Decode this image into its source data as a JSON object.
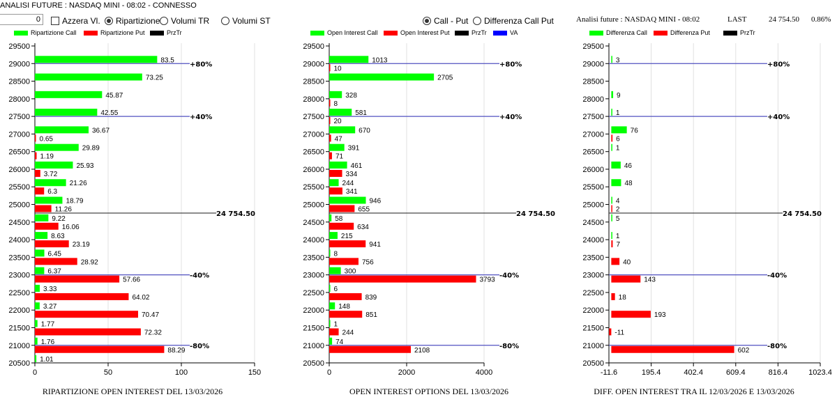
{
  "header": {
    "title": "ANALISI FUTURE : NASDAQ MINI - 08:02 - CONNESSO",
    "input_value": "0",
    "azzera_label": "Azzera Vl.",
    "radios": [
      {
        "label": "Ripartizione",
        "checked": true
      },
      {
        "label": "Volumi TR",
        "checked": false
      },
      {
        "label": "Volumi ST",
        "checked": false
      }
    ],
    "mode_radios": [
      {
        "label": "Call - Put",
        "checked": true
      },
      {
        "label": "Differenza Call Put",
        "checked": false
      }
    ],
    "info": {
      "text": "Analisi future : NASDAQ MINI - 08:02",
      "last_label": "LAST",
      "last_value": "24 754.50",
      "change": "0.86%"
    }
  },
  "colors": {
    "call": "#00ff00",
    "put": "#ff0000",
    "przTr": "#000000",
    "va": "#0000ff",
    "level_line": "#5050c0"
  },
  "chart_data": [
    {
      "type": "bar",
      "title": "RIPARTIZIONE OPEN INTEREST DEL 13/03/2026",
      "legend": [
        "Ripartizione Call",
        "Ripartizione Put",
        "PrzTr"
      ],
      "x_ticks": [
        "0",
        "50",
        "100",
        "150"
      ],
      "xlim": [
        0,
        150
      ],
      "y_ticks": [
        "29500",
        "29000",
        "28500",
        "28000",
        "27500",
        "27000",
        "26500",
        "26000",
        "25500",
        "25000",
        "24500",
        "24000",
        "23500",
        "23000",
        "22500",
        "22000",
        "21500",
        "21000",
        "20500"
      ],
      "strikes": [
        29000,
        28500,
        28000,
        27500,
        27000,
        26500,
        26000,
        25500,
        25000,
        24500,
        24000,
        23500,
        23000,
        22500,
        22000,
        21500,
        21000,
        20500
      ],
      "series": [
        {
          "name": "Ripartizione Call",
          "values": [
            83.5,
            73.25,
            45.87,
            42.55,
            36.67,
            29.89,
            25.93,
            21.26,
            18.79,
            9.22,
            8.63,
            6.45,
            6.37,
            3.33,
            3.27,
            1.77,
            1.76,
            1.01
          ]
        },
        {
          "name": "Ripartizione Put",
          "values": [
            null,
            null,
            null,
            null,
            0.65,
            1.19,
            3.72,
            6.3,
            11.26,
            16.06,
            23.19,
            28.92,
            57.66,
            64.02,
            70.47,
            72.32,
            88.29,
            null
          ]
        }
      ],
      "levels": [
        {
          "strike": 29000,
          "label": "+80%"
        },
        {
          "strike": 27500,
          "label": "+40%"
        },
        {
          "strike": 23000,
          "label": "-40%"
        },
        {
          "strike": 21000,
          "label": "-80%"
        }
      ],
      "price": {
        "value": 24754.5,
        "label": "24 754.50"
      }
    },
    {
      "type": "bar",
      "title": "OPEN INTEREST OPTIONS DEL 13/03/2026",
      "legend": [
        "Open Interest Call",
        "Open Interest Put",
        "PrzTr",
        "VA"
      ],
      "x_ticks": [
        "0",
        "2000",
        "4000"
      ],
      "xlim": [
        0,
        4000
      ],
      "y_ticks": [
        "29500",
        "29000",
        "28500",
        "28000",
        "27500",
        "27000",
        "26500",
        "26000",
        "25500",
        "25000",
        "24500",
        "24000",
        "23500",
        "23000",
        "22500",
        "22000",
        "21500",
        "21000",
        "20500"
      ],
      "strikes": [
        29000,
        28500,
        28000,
        27500,
        27000,
        26500,
        26000,
        25500,
        25000,
        24500,
        24000,
        23500,
        23000,
        22500,
        22000,
        21500,
        21000
      ],
      "series": [
        {
          "name": "Open Interest Call",
          "values": [
            1013,
            2705,
            328,
            581,
            670,
            391,
            461,
            244,
            946,
            58,
            215,
            8,
            300,
            6,
            148,
            1,
            74
          ]
        },
        {
          "name": "Open Interest Put",
          "values": [
            10,
            null,
            8,
            20,
            47,
            71,
            334,
            341,
            655,
            634,
            941,
            756,
            3793,
            839,
            851,
            244,
            2108
          ]
        }
      ],
      "levels": [
        {
          "strike": 29000,
          "label": "+80%"
        },
        {
          "strike": 27500,
          "label": "+40%"
        },
        {
          "strike": 23000,
          "label": "-40%"
        },
        {
          "strike": 21000,
          "label": "-80%"
        }
      ],
      "price": {
        "value": 24754.5,
        "label": "24 754.50"
      }
    },
    {
      "type": "bar",
      "title": "DIFF. OPEN INTEREST TRA IL 12/03/2026 E 13/03/2026",
      "legend": [
        "Differenza Call",
        "Differenza Put",
        "PrzTr"
      ],
      "x_ticks": [
        "-11.6",
        "195.4",
        "402.4",
        "609.4",
        "816.4",
        "1023.4"
      ],
      "xlim": [
        -11.6,
        1023.4
      ],
      "y_ticks": [
        "29500",
        "29000",
        "28500",
        "28000",
        "27500",
        "27000",
        "26500",
        "26000",
        "25500",
        "25000",
        "24500",
        "24000",
        "23500",
        "23000",
        "22500",
        "22000",
        "21500",
        "21000",
        "20500"
      ],
      "strikes": [
        29000,
        28500,
        28000,
        27500,
        27000,
        26500,
        26000,
        25500,
        25000,
        24500,
        24000,
        23500,
        23000,
        22500,
        22000,
        21500,
        21000
      ],
      "series": [
        {
          "name": "Differenza Call",
          "values": [
            3,
            null,
            9,
            1,
            76,
            1,
            46,
            48,
            4,
            5,
            1,
            null,
            null,
            null,
            null,
            null,
            null
          ]
        },
        {
          "name": "Differenza Put",
          "values": [
            null,
            null,
            null,
            null,
            6,
            null,
            null,
            null,
            2,
            null,
            7,
            40,
            143,
            18,
            193,
            -11,
            602
          ]
        }
      ],
      "levels": [
        {
          "strike": 29000,
          "label": "+80%"
        },
        {
          "strike": 27500,
          "label": "+40%"
        },
        {
          "strike": 23000,
          "label": "-40%"
        },
        {
          "strike": 21000,
          "label": "-80%"
        }
      ],
      "price": {
        "value": 24754.5,
        "label": "24 754.50"
      }
    }
  ]
}
